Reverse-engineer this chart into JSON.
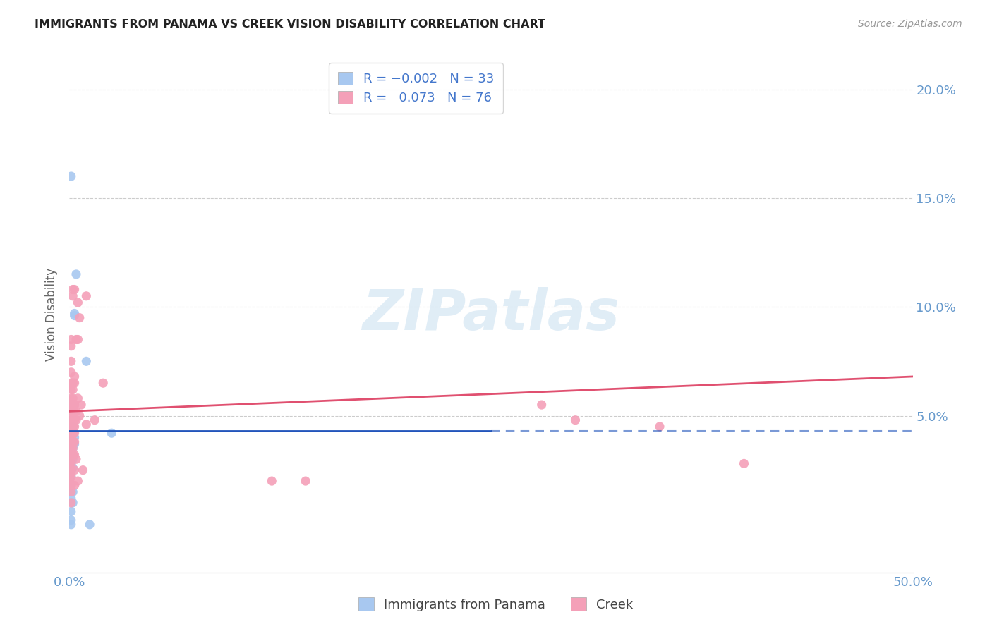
{
  "title": "IMMIGRANTS FROM PANAMA VS CREEK VISION DISABILITY CORRELATION CHART",
  "source": "Source: ZipAtlas.com",
  "ylabel": "Vision Disability",
  "xlim": [
    0.0,
    0.5
  ],
  "ylim": [
    -0.022,
    0.215
  ],
  "ytick_values": [
    0.05,
    0.1,
    0.15,
    0.2
  ],
  "ytick_labels": [
    "5.0%",
    "10.0%",
    "15.0%",
    "20.0%"
  ],
  "xtick_values": [
    0.0,
    0.1,
    0.2,
    0.3,
    0.4,
    0.5
  ],
  "xtick_labels": [
    "0.0%",
    "",
    "",
    "",
    "",
    "50.0%"
  ],
  "watermark": "ZIPatlas",
  "panama_color": "#a8c8f0",
  "creek_color": "#f4a0b8",
  "panama_trend_color": "#2255bb",
  "creek_trend_color": "#e05070",
  "grid_color": "#cccccc",
  "axis_color": "#6699cc",
  "background_color": "#ffffff",
  "panama_trend": [
    0.0,
    0.043,
    0.25,
    0.043
  ],
  "creek_trend": [
    0.0,
    0.052,
    0.5,
    0.068
  ],
  "creek_trend_linestyle": "dashed_solid",
  "panama_points": [
    [
      0.001,
      0.16
    ],
    [
      0.004,
      0.115
    ],
    [
      0.003,
      0.097
    ],
    [
      0.003,
      0.096
    ],
    [
      0.003,
      0.055
    ],
    [
      0.001,
      0.055
    ],
    [
      0.001,
      0.053
    ],
    [
      0.003,
      0.04
    ],
    [
      0.003,
      0.037
    ],
    [
      0.002,
      0.045
    ],
    [
      0.002,
      0.042
    ],
    [
      0.002,
      0.038
    ],
    [
      0.002,
      0.035
    ],
    [
      0.002,
      0.032
    ],
    [
      0.002,
      0.03
    ],
    [
      0.002,
      0.026
    ],
    [
      0.002,
      0.015
    ],
    [
      0.002,
      0.01
    ],
    [
      0.001,
      0.042
    ],
    [
      0.001,
      0.04
    ],
    [
      0.001,
      0.038
    ],
    [
      0.001,
      0.035
    ],
    [
      0.001,
      0.03
    ],
    [
      0.001,
      0.028
    ],
    [
      0.001,
      0.025
    ],
    [
      0.001,
      0.022
    ],
    [
      0.001,
      0.018
    ],
    [
      0.001,
      0.015
    ],
    [
      0.001,
      0.012
    ],
    [
      0.001,
      0.006
    ],
    [
      0.001,
      0.002
    ],
    [
      0.001,
      0.0
    ],
    [
      0.0,
      0.043
    ],
    [
      0.0,
      0.04
    ],
    [
      0.01,
      0.075
    ],
    [
      0.025,
      0.042
    ],
    [
      0.012,
      0.0
    ]
  ],
  "creek_points": [
    [
      0.002,
      0.108
    ],
    [
      0.002,
      0.105
    ],
    [
      0.003,
      0.108
    ],
    [
      0.005,
      0.102
    ],
    [
      0.005,
      0.085
    ],
    [
      0.006,
      0.095
    ],
    [
      0.001,
      0.085
    ],
    [
      0.001,
      0.082
    ],
    [
      0.004,
      0.085
    ],
    [
      0.01,
      0.105
    ],
    [
      0.003,
      0.068
    ],
    [
      0.001,
      0.075
    ],
    [
      0.001,
      0.07
    ],
    [
      0.002,
      0.065
    ],
    [
      0.003,
      0.065
    ],
    [
      0.02,
      0.065
    ],
    [
      0.001,
      0.065
    ],
    [
      0.001,
      0.062
    ],
    [
      0.002,
      0.062
    ],
    [
      0.002,
      0.058
    ],
    [
      0.005,
      0.058
    ],
    [
      0.001,
      0.058
    ],
    [
      0.001,
      0.055
    ],
    [
      0.002,
      0.055
    ],
    [
      0.002,
      0.052
    ],
    [
      0.003,
      0.055
    ],
    [
      0.003,
      0.052
    ],
    [
      0.004,
      0.052
    ],
    [
      0.004,
      0.048
    ],
    [
      0.006,
      0.05
    ],
    [
      0.007,
      0.055
    ],
    [
      0.001,
      0.052
    ],
    [
      0.001,
      0.048
    ],
    [
      0.002,
      0.048
    ],
    [
      0.002,
      0.045
    ],
    [
      0.003,
      0.048
    ],
    [
      0.003,
      0.045
    ],
    [
      0.001,
      0.045
    ],
    [
      0.001,
      0.042
    ],
    [
      0.002,
      0.042
    ],
    [
      0.002,
      0.038
    ],
    [
      0.003,
      0.042
    ],
    [
      0.003,
      0.038
    ],
    [
      0.001,
      0.04
    ],
    [
      0.001,
      0.038
    ],
    [
      0.002,
      0.035
    ],
    [
      0.002,
      0.032
    ],
    [
      0.003,
      0.032
    ],
    [
      0.003,
      0.025
    ],
    [
      0.001,
      0.035
    ],
    [
      0.001,
      0.032
    ],
    [
      0.001,
      0.028
    ],
    [
      0.001,
      0.025
    ],
    [
      0.001,
      0.022
    ],
    [
      0.001,
      0.018
    ],
    [
      0.001,
      0.015
    ],
    [
      0.001,
      0.01
    ],
    [
      0.0,
      0.055
    ],
    [
      0.0,
      0.05
    ],
    [
      0.0,
      0.045
    ],
    [
      0.0,
      0.04
    ],
    [
      0.0,
      0.038
    ],
    [
      0.0,
      0.035
    ],
    [
      0.0,
      0.032
    ],
    [
      0.0,
      0.028
    ],
    [
      0.0,
      0.025
    ],
    [
      0.0,
      0.022
    ],
    [
      0.0,
      0.02
    ],
    [
      0.0,
      0.018
    ],
    [
      0.004,
      0.03
    ],
    [
      0.008,
      0.025
    ],
    [
      0.01,
      0.046
    ],
    [
      0.015,
      0.048
    ],
    [
      0.003,
      0.018
    ],
    [
      0.3,
      0.048
    ],
    [
      0.35,
      0.045
    ],
    [
      0.28,
      0.055
    ],
    [
      0.4,
      0.028
    ],
    [
      0.12,
      0.02
    ],
    [
      0.14,
      0.02
    ],
    [
      0.005,
      0.02
    ]
  ]
}
